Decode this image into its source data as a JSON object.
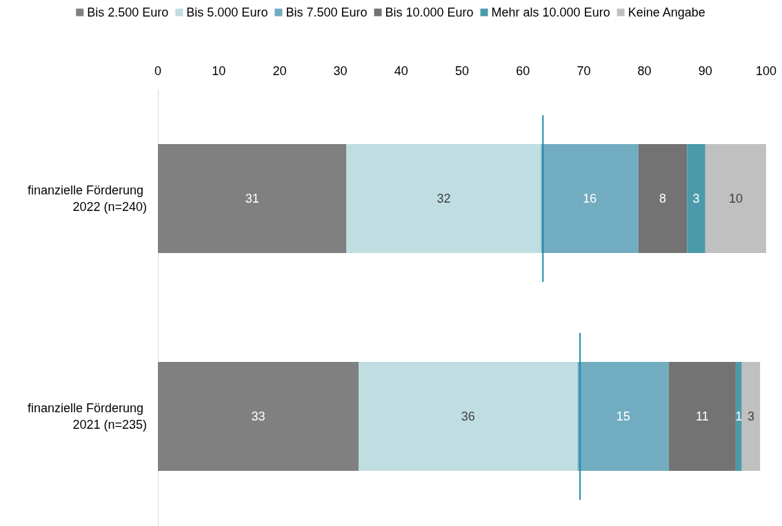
{
  "chart_data": {
    "type": "bar",
    "orientation": "horizontal",
    "stacked": true,
    "data_labels": true,
    "legend": "top",
    "grid": false,
    "categories": [
      "finanzielle Förderung 2022 (n=240)",
      "finanzielle Förderung 2021 (n=235)"
    ],
    "xlim": [
      0,
      100
    ],
    "xticks": [
      0,
      10,
      20,
      30,
      40,
      50,
      60,
      70,
      80,
      90,
      100
    ],
    "series": [
      {
        "name": "Bis 2.500 Euro",
        "color": "#808080",
        "values": [
          31,
          33
        ]
      },
      {
        "name": "Bis 5.000 Euro",
        "color": "#c0dde2",
        "values": [
          32,
          36
        ]
      },
      {
        "name": "Bis 7.500 Euro",
        "color": "#72acc0",
        "values": [
          16,
          15
        ]
      },
      {
        "name": "Bis 10.000 Euro",
        "color": "#737373",
        "values": [
          8,
          11
        ]
      },
      {
        "name": "Mehr als 10.000 Euro",
        "color": "#4b9aaa",
        "values": [
          3,
          1
        ]
      },
      {
        "name": "Keine Angabe",
        "color": "#c0c0c0",
        "values": [
          10,
          3
        ]
      }
    ],
    "ref_lines": [
      {
        "axis": "x",
        "value": 63.3,
        "color": "#1a8aaa"
      },
      {
        "axis": "x",
        "value": 69.4,
        "color": "#1a8aaa"
      }
    ]
  }
}
